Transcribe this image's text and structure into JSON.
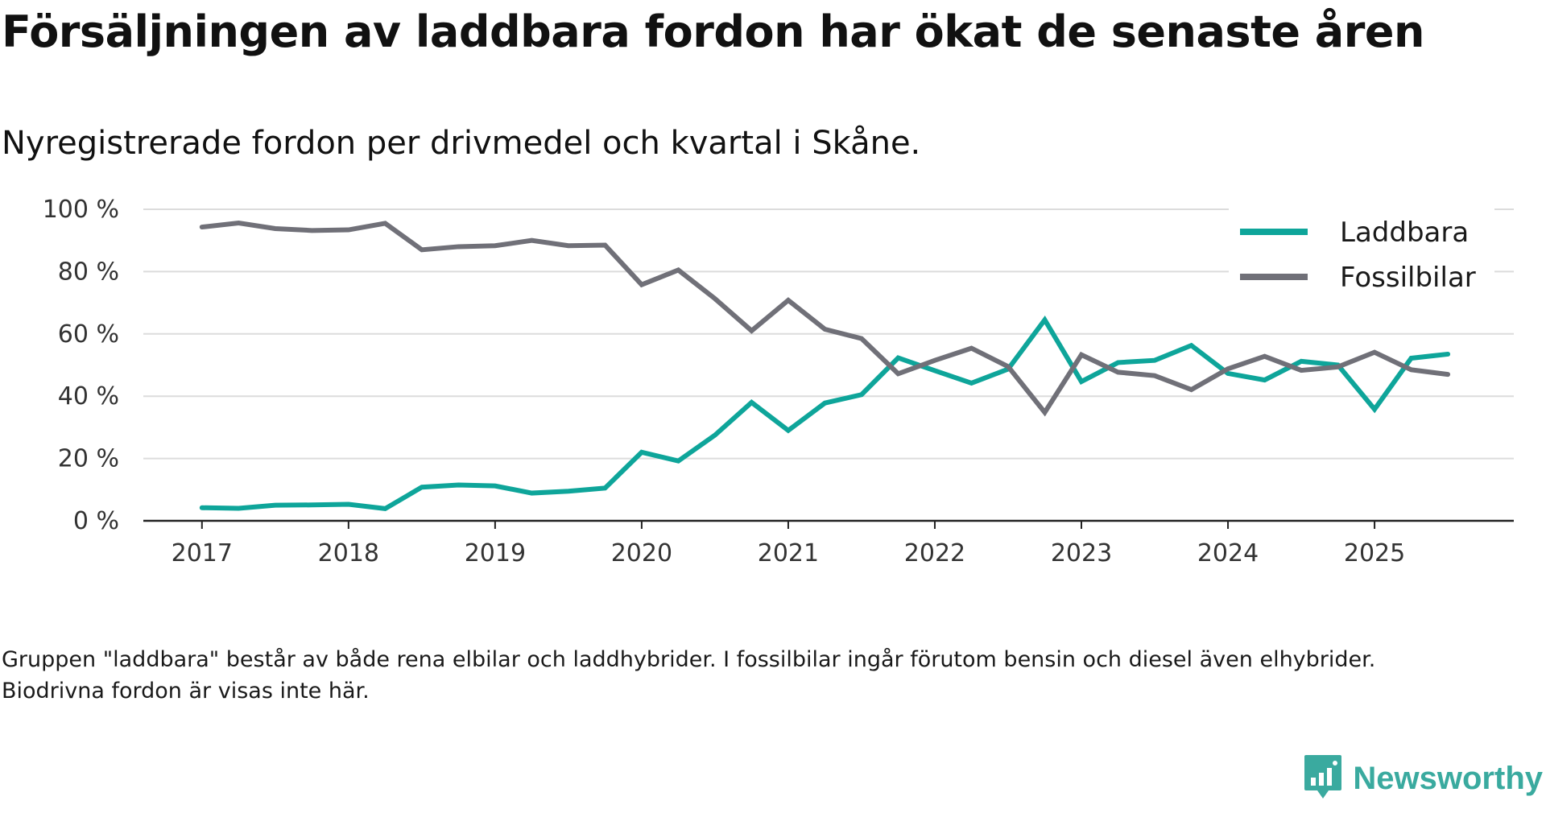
{
  "header": {
    "title": "Försäljningen av laddbara fordon har ökat de senaste åren",
    "subtitle": "Nyregistrerade fordon per drivmedel och kvartal i Skåne."
  },
  "footer": {
    "note": "Gruppen \"laddbara\" består av både rena elbilar och laddhybrider. I fossilbilar ingår förutom bensin och diesel även elhybrider. Biodrivna fordon är visas inte här.",
    "brand": "Newsworthy",
    "brand_icon": "newsworthy-logo-icon"
  },
  "chart_data": {
    "type": "line",
    "title": "Försäljningen av laddbara fordon har ökat de senaste åren",
    "subtitle": "Nyregistrerade fordon per drivmedel och kvartal i Skåne.",
    "xlabel": "",
    "ylabel": "",
    "ylim": [
      0,
      100
    ],
    "y_ticks": [
      0,
      20,
      40,
      60,
      80,
      100
    ],
    "y_tick_labels": [
      "0 %",
      "20 %",
      "40 %",
      "60 %",
      "80 %",
      "100 %"
    ],
    "x_ticks": [
      2017,
      2018,
      2019,
      2020,
      2021,
      2022,
      2023,
      2024,
      2025
    ],
    "x_tick_labels": [
      "2017",
      "2018",
      "2019",
      "2020",
      "2021",
      "2022",
      "2023",
      "2024",
      "2025"
    ],
    "xlim": [
      2016.6,
      2025.95
    ],
    "grid": true,
    "legend_position": "top-right",
    "x": [
      2017.0,
      2017.25,
      2017.5,
      2017.75,
      2018.0,
      2018.25,
      2018.5,
      2018.75,
      2019.0,
      2019.25,
      2019.5,
      2019.75,
      2020.0,
      2020.25,
      2020.5,
      2020.75,
      2021.0,
      2021.25,
      2021.5,
      2021.75,
      2022.0,
      2022.25,
      2022.5,
      2022.75,
      2023.0,
      2023.25,
      2023.5,
      2023.75,
      2024.0,
      2024.25,
      2024.5,
      2024.75,
      2025.0,
      2025.25,
      2025.5
    ],
    "series": [
      {
        "name": "Laddbara",
        "color": "#0ea59a",
        "values": [
          4.2,
          4.0,
          5.0,
          5.1,
          5.3,
          3.9,
          10.8,
          11.5,
          11.2,
          8.9,
          9.5,
          10.5,
          22.0,
          19.2,
          27.5,
          38.0,
          29.0,
          37.8,
          40.5,
          52.3,
          48.2,
          44.2,
          48.7,
          64.5,
          44.7,
          50.8,
          51.5,
          56.3,
          47.3,
          45.2,
          51.2,
          50.0,
          35.8,
          52.2,
          53.5
        ]
      },
      {
        "name": "Fossilbilar",
        "color": "#707078",
        "values": [
          94.3,
          95.6,
          93.8,
          93.2,
          93.4,
          95.5,
          87.0,
          88.0,
          88.3,
          90.0,
          88.3,
          88.5,
          75.8,
          80.5,
          71.3,
          61.0,
          70.8,
          61.5,
          58.5,
          47.2,
          51.5,
          55.4,
          49.5,
          34.8,
          53.3,
          47.7,
          46.6,
          42.1,
          48.8,
          52.8,
          48.3,
          49.4,
          54.1,
          48.5,
          47.0
        ]
      }
    ]
  }
}
